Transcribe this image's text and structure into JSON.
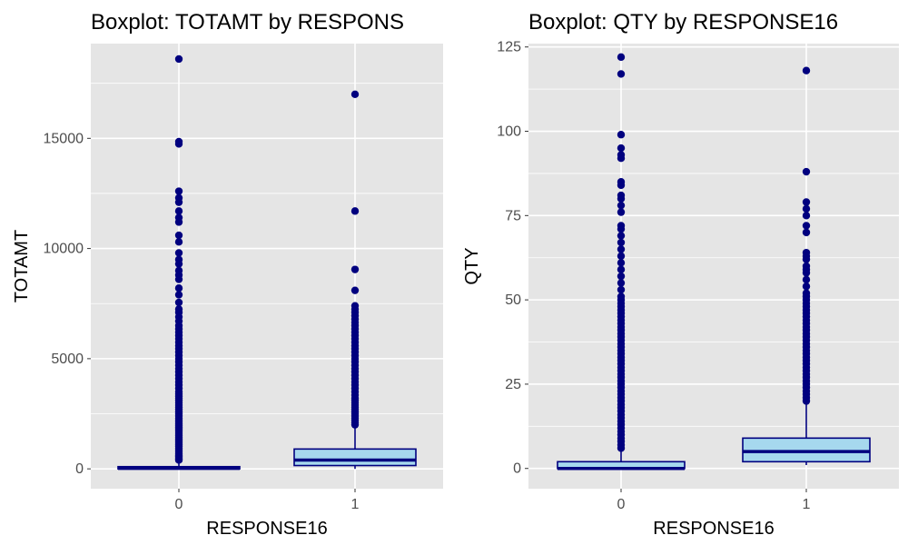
{
  "colors": {
    "panel_bg": "#e5e5e5",
    "grid": "#ffffff",
    "box_fill": "#a6d8ee",
    "box_stroke": "#00007f",
    "outlier": "#00007f"
  },
  "chart_data": [
    {
      "type": "boxplot",
      "title": "Boxplot: TOTAMT by RESPONS",
      "xlabel": "RESPONSE16",
      "ylabel": "TOTAMT",
      "categories": [
        "0",
        "1"
      ],
      "ylim": [
        -900,
        19300
      ],
      "yticks": [
        0,
        5000,
        10000,
        15000
      ],
      "ytick_labels": [
        "0",
        "5000",
        "10000",
        "15000"
      ],
      "grid": true,
      "boxes": [
        {
          "category": "0",
          "min": 0,
          "q1": 0,
          "median": 20,
          "q3": 100,
          "max": 340,
          "outliers": [
            400,
            450,
            500,
            560,
            620,
            700,
            780,
            860,
            940,
            1020,
            1100,
            1180,
            1260,
            1340,
            1420,
            1500,
            1580,
            1660,
            1740,
            1820,
            1900,
            1980,
            2060,
            2140,
            2220,
            2300,
            2400,
            2500,
            2600,
            2700,
            2800,
            2900,
            3000,
            3100,
            3200,
            3300,
            3400,
            3500,
            3650,
            3800,
            3950,
            4100,
            4250,
            4400,
            4550,
            4700,
            4850,
            5000,
            5150,
            5300,
            5450,
            5600,
            5750,
            5900,
            6050,
            6200,
            6350,
            6500,
            6700,
            6900,
            7100,
            7250,
            7550,
            7900,
            8200,
            8600,
            8800,
            9000,
            9300,
            9500,
            9800,
            10300,
            10600,
            11200,
            11400,
            11700,
            12100,
            12300,
            12600,
            14750,
            14850,
            18600
          ]
        },
        {
          "category": "1",
          "min": 0,
          "q1": 150,
          "median": 400,
          "q3": 900,
          "max": 1950,
          "outliers": [
            2000,
            2100,
            2200,
            2300,
            2400,
            2500,
            2600,
            2700,
            2800,
            2900,
            3000,
            3100,
            3200,
            3350,
            3500,
            3650,
            3800,
            3950,
            4100,
            4250,
            4400,
            4550,
            4700,
            4850,
            5000,
            5150,
            5300,
            5450,
            5600,
            5750,
            5900,
            6050,
            6200,
            6350,
            6500,
            6650,
            6800,
            6950,
            7100,
            7250,
            7400,
            8100,
            9050,
            11700,
            17000
          ]
        }
      ]
    },
    {
      "type": "boxplot",
      "title": "Boxplot: QTY by RESPONSE16",
      "xlabel": "RESPONSE16",
      "ylabel": "QTY",
      "categories": [
        "0",
        "1"
      ],
      "ylim": [
        -6,
        126
      ],
      "yticks": [
        0,
        25,
        50,
        75,
        100,
        125
      ],
      "ytick_labels": [
        "0",
        "25",
        "50",
        "75",
        "100",
        "125"
      ],
      "grid": true,
      "boxes": [
        {
          "category": "0",
          "min": 0,
          "q1": 0,
          "median": 0,
          "q3": 2,
          "max": 5,
          "outliers": [
            6,
            7,
            8,
            9,
            10,
            11,
            12,
            13,
            14,
            15,
            16,
            17,
            18,
            19,
            20,
            21,
            22,
            23,
            24,
            25,
            26,
            27,
            28,
            29,
            30,
            31,
            32,
            33,
            34,
            35,
            36,
            37,
            38,
            39,
            40,
            41,
            42,
            43,
            44,
            45,
            46,
            47,
            48,
            49,
            50,
            51,
            53,
            55,
            57,
            59,
            61,
            63,
            65,
            67,
            69,
            71,
            72,
            76,
            78,
            80,
            81,
            84,
            85,
            92,
            93,
            95,
            99,
            117,
            122
          ]
        },
        {
          "category": "1",
          "min": 1,
          "q1": 2,
          "median": 5,
          "q3": 9,
          "max": 19,
          "outliers": [
            20,
            21,
            22,
            23,
            24,
            25,
            26,
            27,
            28,
            29,
            30,
            31,
            32,
            33,
            34,
            35,
            36,
            37,
            38,
            39,
            40,
            41,
            42,
            43,
            44,
            45,
            46,
            47,
            48,
            49,
            50,
            51,
            52,
            54,
            56,
            58,
            59,
            60,
            62,
            63,
            64,
            70,
            72,
            75,
            77,
            79,
            88,
            118
          ]
        }
      ]
    }
  ]
}
